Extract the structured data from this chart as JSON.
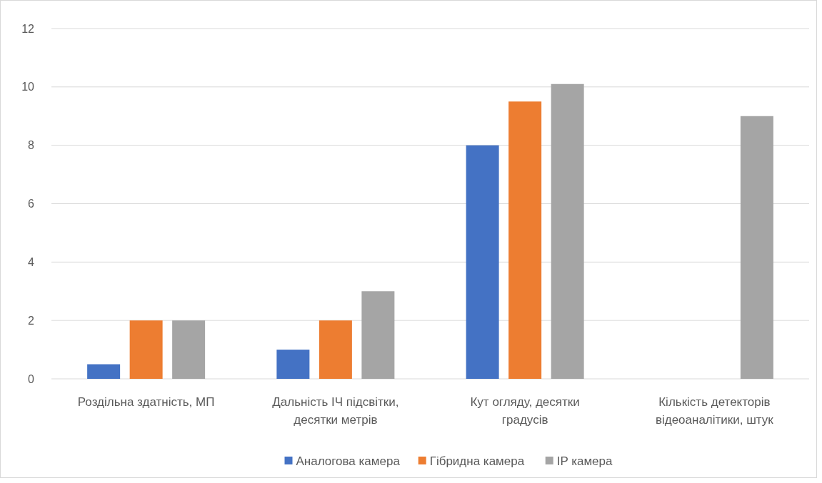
{
  "chart_data": {
    "type": "bar",
    "categories": [
      "Роздільна здатність, МП",
      "Дальність ІЧ підсвітки, десятки метрів",
      "Кут огляду, десятки градусів",
      "Кількість детекторів відеоаналітики, штук"
    ],
    "series": [
      {
        "name": "Аналогова камера",
        "color": "#4472c4",
        "values": [
          0.5,
          1,
          8,
          null
        ]
      },
      {
        "name": "Гібридна камера",
        "color": "#ed7d31",
        "values": [
          2,
          2,
          9.5,
          null
        ]
      },
      {
        "name": "IP камера",
        "color": "#a5a5a5",
        "values": [
          2,
          3,
          10.1,
          9
        ]
      }
    ],
    "ylim": [
      0,
      12
    ],
    "yticks": [
      0,
      2,
      4,
      6,
      8,
      10,
      12
    ],
    "grid": "y",
    "legend": "bottom"
  }
}
